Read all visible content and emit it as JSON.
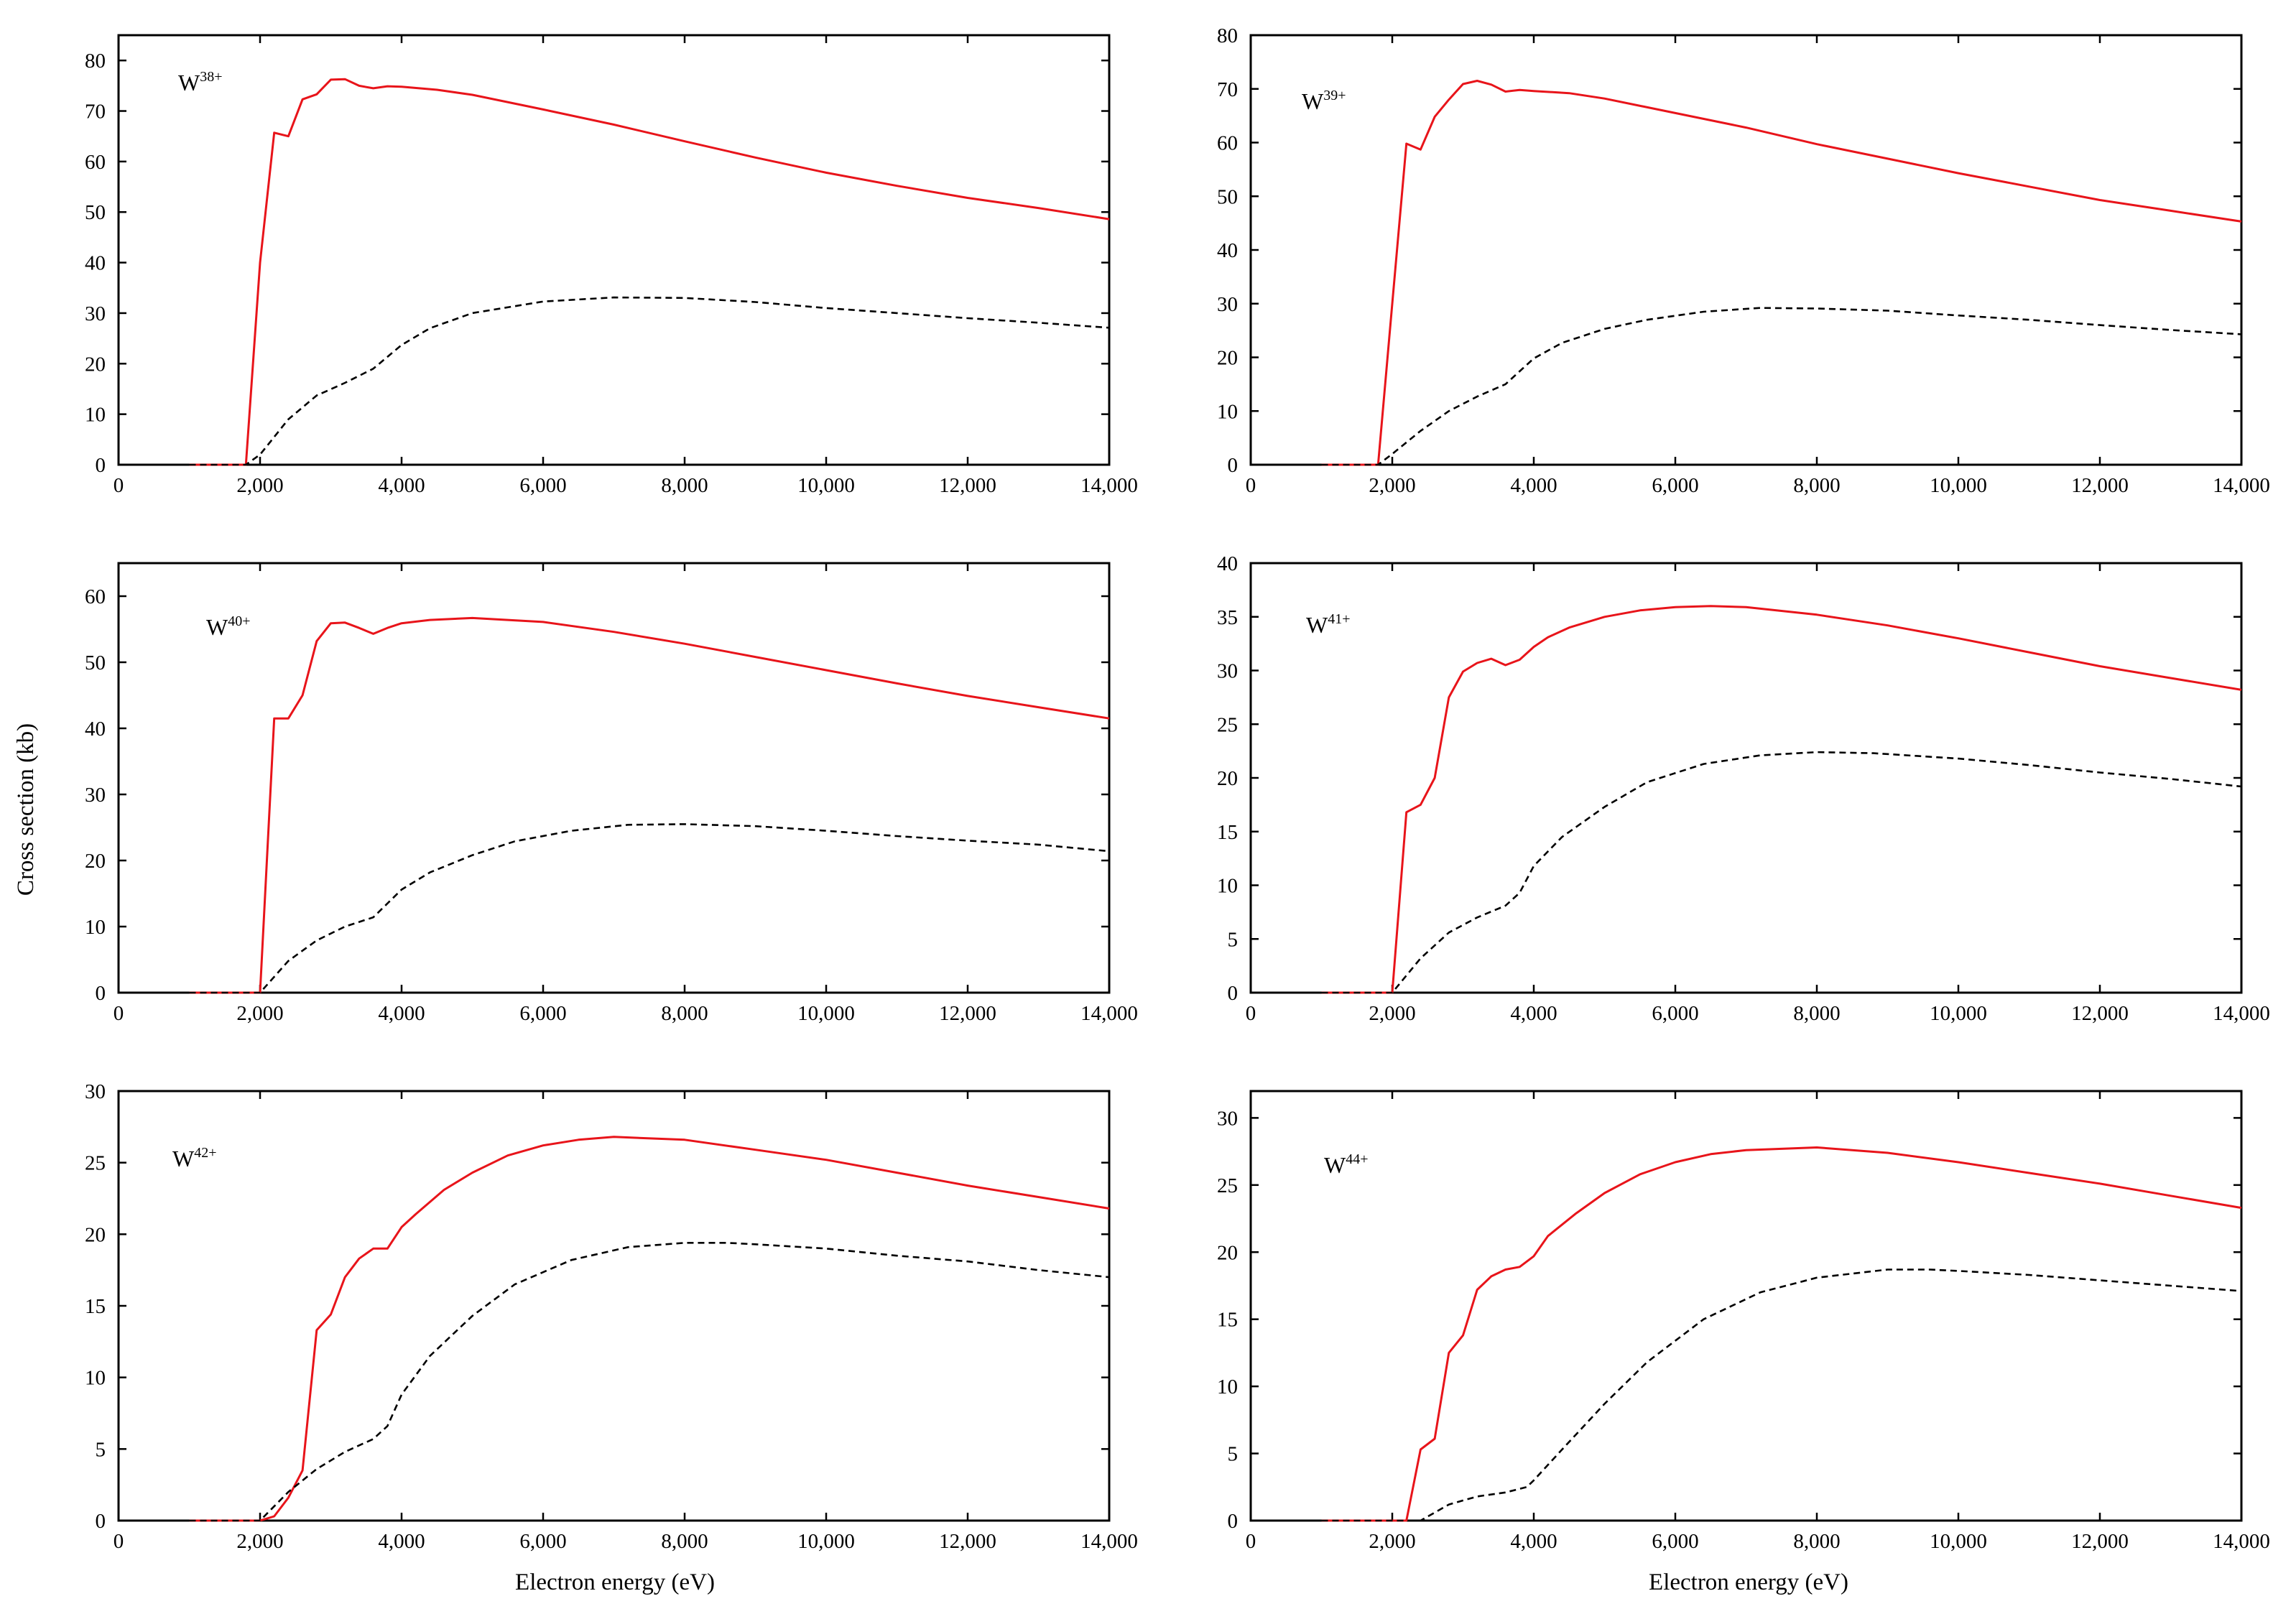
{
  "figure": {
    "ylabel": "Cross section (kb)",
    "xlabel": "Electron energy (eV)"
  },
  "colors": {
    "solid": "#e8141a",
    "dashed": "#000000",
    "axis": "#000000"
  },
  "chart_data": [
    {
      "type": "line",
      "ion": {
        "base": "W",
        "charge": "38+"
      },
      "xlim": [
        0,
        14000
      ],
      "ylim": [
        0,
        85
      ],
      "xticks": [
        0,
        2000,
        4000,
        6000,
        8000,
        10000,
        12000,
        14000
      ],
      "xtick_labels": [
        "0",
        "2,000",
        "4,000",
        "6,000",
        "8,000",
        "10,000",
        "12,000",
        "14,000"
      ],
      "yticks": [
        0,
        10,
        20,
        30,
        40,
        50,
        60,
        70,
        80
      ],
      "ytick_labels": [
        "0",
        "10",
        "20",
        "30",
        "40",
        "50",
        "60",
        "70",
        "80"
      ],
      "series": [
        {
          "name": "solid",
          "style": "solid",
          "x": [
            1000,
            1800,
            2000,
            2200,
            2400,
            2600,
            2800,
            3000,
            3200,
            3400,
            3600,
            3800,
            4000,
            4500,
            5000,
            6000,
            7000,
            8000,
            9000,
            10000,
            11000,
            12000,
            13000,
            14000
          ],
          "y": [
            0,
            0,
            40,
            65.7,
            65,
            72.3,
            73.3,
            76.2,
            76.3,
            75,
            74.5,
            74.9,
            74.8,
            74.2,
            73.2,
            70.3,
            67.3,
            64,
            60.8,
            57.8,
            55.2,
            52.8,
            50.8,
            48.6
          ]
        },
        {
          "name": "dashed",
          "style": "dashed",
          "x": [
            1000,
            1800,
            2000,
            2400,
            2800,
            3200,
            3600,
            4000,
            4400,
            5000,
            6000,
            7000,
            8000,
            9000,
            10000,
            11000,
            12000,
            13000,
            14000
          ],
          "y": [
            0,
            0,
            2,
            9,
            13.7,
            16.2,
            19,
            23.7,
            27,
            30,
            32.3,
            33.1,
            33,
            32.2,
            31,
            30,
            29,
            28.1,
            27.1
          ]
        }
      ]
    },
    {
      "type": "line",
      "ion": {
        "base": "W",
        "charge": "39+"
      },
      "xlim": [
        0,
        14000
      ],
      "ylim": [
        0,
        80
      ],
      "xticks": [
        0,
        2000,
        4000,
        6000,
        8000,
        10000,
        12000,
        14000
      ],
      "xtick_labels": [
        "0",
        "2,000",
        "4,000",
        "6,000",
        "8,000",
        "10,000",
        "12,000",
        "14,000"
      ],
      "yticks": [
        0,
        10,
        20,
        30,
        40,
        50,
        60,
        70,
        80
      ],
      "ytick_labels": [
        "0",
        "10",
        "20",
        "30",
        "40",
        "50",
        "60",
        "70",
        "80"
      ],
      "series": [
        {
          "name": "solid",
          "style": "solid",
          "x": [
            1000,
            1800,
            2000,
            2200,
            2400,
            2600,
            2800,
            3000,
            3200,
            3400,
            3600,
            3800,
            4000,
            4500,
            5000,
            6000,
            7000,
            8000,
            9000,
            10000,
            11000,
            12000,
            13000,
            14000
          ],
          "y": [
            0,
            0,
            30,
            59.8,
            58.7,
            64.8,
            68,
            70.9,
            71.5,
            70.8,
            69.5,
            69.8,
            69.6,
            69.2,
            68.2,
            65.5,
            62.8,
            59.7,
            57,
            54.3,
            51.8,
            49.3,
            47.3,
            45.3
          ]
        },
        {
          "name": "dashed",
          "style": "dashed",
          "x": [
            1000,
            1800,
            2000,
            2400,
            2800,
            3200,
            3600,
            4000,
            4400,
            5000,
            5600,
            6400,
            7200,
            8000,
            9000,
            10000,
            11000,
            12000,
            13000,
            14000
          ],
          "y": [
            0,
            0,
            2,
            6.3,
            10,
            12.7,
            15,
            19.8,
            22.7,
            25.3,
            27,
            28.5,
            29.2,
            29.1,
            28.7,
            27.8,
            27,
            26,
            25.1,
            24.3
          ]
        }
      ]
    },
    {
      "type": "line",
      "ion": {
        "base": "W",
        "charge": "40+"
      },
      "xlim": [
        0,
        14000
      ],
      "ylim": [
        0,
        65
      ],
      "xticks": [
        0,
        2000,
        4000,
        6000,
        8000,
        10000,
        12000,
        14000
      ],
      "xtick_labels": [
        "0",
        "2,000",
        "4,000",
        "6,000",
        "8,000",
        "10,000",
        "12,000",
        "14,000"
      ],
      "yticks": [
        0,
        10,
        20,
        30,
        40,
        50,
        60
      ],
      "ytick_labels": [
        "0",
        "10",
        "20",
        "30",
        "40",
        "50",
        "60"
      ],
      "series": [
        {
          "name": "solid",
          "style": "solid",
          "x": [
            1000,
            2000,
            2200,
            2400,
            2600,
            2800,
            3000,
            3200,
            3400,
            3600,
            3800,
            4000,
            4400,
            5000,
            6000,
            7000,
            8000,
            9000,
            10000,
            11000,
            12000,
            13000,
            14000
          ],
          "y": [
            0,
            0,
            41.5,
            41.5,
            45,
            53.2,
            55.9,
            56,
            55.2,
            54.3,
            55.2,
            55.9,
            56.4,
            56.7,
            56.1,
            54.6,
            52.8,
            50.8,
            48.8,
            46.8,
            44.9,
            43.2,
            41.5
          ]
        },
        {
          "name": "dashed",
          "style": "dashed",
          "x": [
            1000,
            2000,
            2400,
            2800,
            3200,
            3600,
            4000,
            4400,
            5000,
            5600,
            6400,
            7200,
            8000,
            9000,
            10000,
            11000,
            12000,
            13000,
            14000
          ],
          "y": [
            0,
            0,
            4.8,
            7.9,
            10,
            11.4,
            15.6,
            18.2,
            20.8,
            22.9,
            24.5,
            25.4,
            25.5,
            25.2,
            24.5,
            23.7,
            23,
            22.4,
            21.4
          ]
        }
      ]
    },
    {
      "type": "line",
      "ion": {
        "base": "W",
        "charge": "41+"
      },
      "xlim": [
        0,
        14000
      ],
      "ylim": [
        0,
        40
      ],
      "xticks": [
        0,
        2000,
        4000,
        6000,
        8000,
        10000,
        12000,
        14000
      ],
      "xtick_labels": [
        "0",
        "2,000",
        "4,000",
        "6,000",
        "8,000",
        "10,000",
        "12,000",
        "14,000"
      ],
      "yticks": [
        0,
        5,
        10,
        15,
        20,
        25,
        30,
        35,
        40
      ],
      "ytick_labels": [
        "0",
        "5",
        "10",
        "15",
        "20",
        "25",
        "30",
        "35",
        "40"
      ],
      "series": [
        {
          "name": "solid",
          "style": "solid",
          "x": [
            1000,
            2000,
            2200,
            2400,
            2600,
            2800,
            3000,
            3200,
            3400,
            3600,
            3800,
            4000,
            4200,
            4500,
            5000,
            5500,
            6000,
            6500,
            7000,
            8000,
            9000,
            10000,
            11000,
            12000,
            13000,
            14000
          ],
          "y": [
            0,
            0,
            16.8,
            17.5,
            20,
            27.5,
            29.9,
            30.7,
            31.1,
            30.5,
            31,
            32.2,
            33.1,
            34,
            35,
            35.6,
            35.9,
            36,
            35.9,
            35.2,
            34.2,
            33,
            31.7,
            30.4,
            29.3,
            28.2
          ]
        },
        {
          "name": "dashed",
          "style": "dashed",
          "x": [
            1000,
            2000,
            2400,
            2800,
            3200,
            3600,
            3800,
            4000,
            4400,
            5000,
            5600,
            6400,
            7200,
            8000,
            8800,
            10000,
            11000,
            12000,
            13000,
            14000
          ],
          "y": [
            0,
            0,
            3.2,
            5.6,
            7,
            8.1,
            9.3,
            11.8,
            14.5,
            17.3,
            19.6,
            21.3,
            22.1,
            22.4,
            22.3,
            21.8,
            21.2,
            20.5,
            19.9,
            19.2
          ]
        }
      ]
    },
    {
      "type": "line",
      "ion": {
        "base": "W",
        "charge": "42+"
      },
      "xlim": [
        0,
        14000
      ],
      "ylim": [
        0,
        30
      ],
      "xticks": [
        0,
        2000,
        4000,
        6000,
        8000,
        10000,
        12000,
        14000
      ],
      "xtick_labels": [
        "0",
        "2,000",
        "4,000",
        "6,000",
        "8,000",
        "10,000",
        "12,000",
        "14,000"
      ],
      "yticks": [
        0,
        5,
        10,
        15,
        20,
        25,
        30
      ],
      "ytick_labels": [
        "0",
        "5",
        "10",
        "15",
        "20",
        "25",
        "30"
      ],
      "series": [
        {
          "name": "solid",
          "style": "solid",
          "x": [
            1000,
            2000,
            2200,
            2400,
            2600,
            2800,
            3000,
            3200,
            3400,
            3600,
            3800,
            4000,
            4200,
            4600,
            5000,
            5500,
            6000,
            6500,
            7000,
            8000,
            9000,
            10000,
            11000,
            12000,
            13000,
            14000
          ],
          "y": [
            0,
            0,
            0.3,
            1.6,
            3.5,
            13.3,
            14.4,
            17,
            18.3,
            19,
            19,
            20.5,
            21.4,
            23.1,
            24.3,
            25.5,
            26.2,
            26.6,
            26.8,
            26.6,
            25.9,
            25.2,
            24.3,
            23.4,
            22.6,
            21.8
          ]
        },
        {
          "name": "dashed",
          "style": "dashed",
          "x": [
            1000,
            2000,
            2400,
            2800,
            3200,
            3600,
            3800,
            4000,
            4400,
            5000,
            5600,
            6400,
            7200,
            8000,
            8600,
            9000,
            10000,
            11000,
            12000,
            13000,
            14000
          ],
          "y": [
            0,
            0,
            2,
            3.6,
            4.8,
            5.7,
            6.6,
            8.8,
            11.5,
            14.3,
            16.5,
            18.2,
            19.1,
            19.4,
            19.4,
            19.3,
            19,
            18.5,
            18.1,
            17.5,
            17
          ]
        }
      ]
    },
    {
      "type": "line",
      "ion": {
        "base": "W",
        "charge": "44+"
      },
      "xlim": [
        0,
        14000
      ],
      "ylim": [
        0,
        32
      ],
      "xticks": [
        0,
        2000,
        4000,
        6000,
        8000,
        10000,
        12000,
        14000
      ],
      "xtick_labels": [
        "0",
        "2,000",
        "4,000",
        "6,000",
        "8,000",
        "10,000",
        "12,000",
        "14,000"
      ],
      "yticks": [
        0,
        5,
        10,
        15,
        20,
        25,
        30
      ],
      "ytick_labels": [
        "0",
        "5",
        "10",
        "15",
        "20",
        "25",
        "30"
      ],
      "series": [
        {
          "name": "solid",
          "style": "solid",
          "x": [
            1000,
            2200,
            2400,
            2600,
            2800,
            3000,
            3200,
            3400,
            3600,
            3800,
            4000,
            4200,
            4600,
            5000,
            5500,
            6000,
            6500,
            7000,
            8000,
            9000,
            10000,
            11000,
            12000,
            13000,
            14000
          ],
          "y": [
            0,
            0,
            5.3,
            6.1,
            12.5,
            13.8,
            17.2,
            18.2,
            18.7,
            18.9,
            19.7,
            21.2,
            22.9,
            24.4,
            25.8,
            26.7,
            27.3,
            27.6,
            27.8,
            27.4,
            26.7,
            25.9,
            25.1,
            24.2,
            23.3
          ]
        },
        {
          "name": "dashed",
          "style": "dashed",
          "x": [
            1000,
            2400,
            2800,
            3200,
            3600,
            3900,
            4000,
            4400,
            5000,
            5600,
            6400,
            7200,
            8000,
            9000,
            9600,
            10000,
            11000,
            12000,
            13000,
            14000
          ],
          "y": [
            0,
            0,
            1.2,
            1.8,
            2.1,
            2.5,
            3,
            5.3,
            8.7,
            11.8,
            15,
            17,
            18.1,
            18.7,
            18.7,
            18.6,
            18.3,
            17.9,
            17.5,
            17.1
          ]
        }
      ]
    }
  ]
}
